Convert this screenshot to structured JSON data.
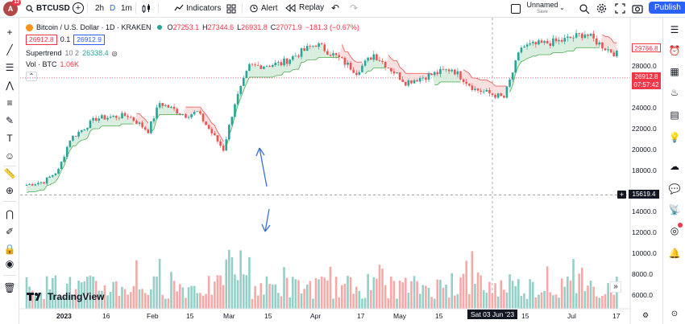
{
  "topbar": {
    "notification_count": "12",
    "avatar_letter": "A",
    "symbol": "BTCUSD",
    "intervals": [
      "2h",
      "D",
      "1m"
    ],
    "indicators_label": "Indicators",
    "alert_label": "Alert",
    "replay_label": "Replay",
    "layout_name": "Unnamed",
    "layout_status": "Save",
    "publish_label": "Publish"
  },
  "legend": {
    "title": "Bitcoin / U.S. Dollar · 1D · KRAKEN",
    "open_label": "O",
    "open": "27253.1",
    "high_label": "H",
    "high": "27344.6",
    "low_label": "L",
    "low": "26931.8",
    "close_label": "C",
    "close": "27071.9",
    "change": "−181.3 (−0.67%)",
    "bid": "26912.8",
    "spread": "0.1",
    "ask": "26912.9",
    "supertrend_name": "Supertrend",
    "supertrend_params": "10 2",
    "supertrend_value": "26338.4",
    "vol_name": "Vol · BTC",
    "vol_value": "1.06K"
  },
  "price_axis": {
    "ticks": [
      "28000.0",
      "26000.0",
      "24000.0",
      "22000.0",
      "20000.0",
      "18000.0",
      "16000.0",
      "14000.0",
      "12000.0",
      "10000.0",
      "8000.0",
      "6000.0"
    ],
    "tag_supertrend": "29766.8",
    "tag_last": "26912.8",
    "tag_countdown": "07:57:42",
    "tag_crosshair": "15619.4"
  },
  "time_axis": {
    "ticks": [
      "2023",
      "16",
      "Feb",
      "15",
      "Mar",
      "15",
      "Apr",
      "17",
      "May",
      "15",
      "Jun",
      "15",
      "Jul",
      "17"
    ],
    "crosshair_date": "Sat 03 Jun '23"
  },
  "branding": "TradingView",
  "colors": {
    "up": "#26a69a",
    "down": "#ef5350",
    "up_fill": "#cde8d6",
    "down_fill": "#f8d4d4",
    "accent": "#2962ff",
    "annotation": "#3b6fd6"
  },
  "chart_data": {
    "type": "candlestick",
    "symbol": "BTCUSD",
    "timeframe": "1D",
    "exchange": "KRAKEN",
    "price_range": [
      6000,
      31000
    ],
    "crosshair_price": 15619.4,
    "daily_close_path": [
      {
        "date": "2023-01-01",
        "close": 16600
      },
      {
        "date": "2023-01-07",
        "close": 16900
      },
      {
        "date": "2023-01-12",
        "close": 18000
      },
      {
        "date": "2023-01-16",
        "close": 21000
      },
      {
        "date": "2023-01-25",
        "close": 23000
      },
      {
        "date": "2023-02-05",
        "close": 23300
      },
      {
        "date": "2023-02-12",
        "close": 21800
      },
      {
        "date": "2023-02-16",
        "close": 24500
      },
      {
        "date": "2023-02-25",
        "close": 23300
      },
      {
        "date": "2023-03-01",
        "close": 23600
      },
      {
        "date": "2023-03-10",
        "close": 20000
      },
      {
        "date": "2023-03-14",
        "close": 24500
      },
      {
        "date": "2023-03-19",
        "close": 28000
      },
      {
        "date": "2023-03-30",
        "close": 28300
      },
      {
        "date": "2023-04-11",
        "close": 30200
      },
      {
        "date": "2023-04-19",
        "close": 28800
      },
      {
        "date": "2023-04-25",
        "close": 27500
      },
      {
        "date": "2023-05-01",
        "close": 29200
      },
      {
        "date": "2023-05-12",
        "close": 26500
      },
      {
        "date": "2023-05-28",
        "close": 27800
      },
      {
        "date": "2023-06-05",
        "close": 25800
      },
      {
        "date": "2023-06-15",
        "close": 25000
      },
      {
        "date": "2023-06-21",
        "close": 29900
      },
      {
        "date": "2023-07-05",
        "close": 30500
      },
      {
        "date": "2023-07-13",
        "close": 31200
      },
      {
        "date": "2023-07-20",
        "close": 29800
      },
      {
        "date": "2023-07-24",
        "close": 29200
      }
    ]
  }
}
